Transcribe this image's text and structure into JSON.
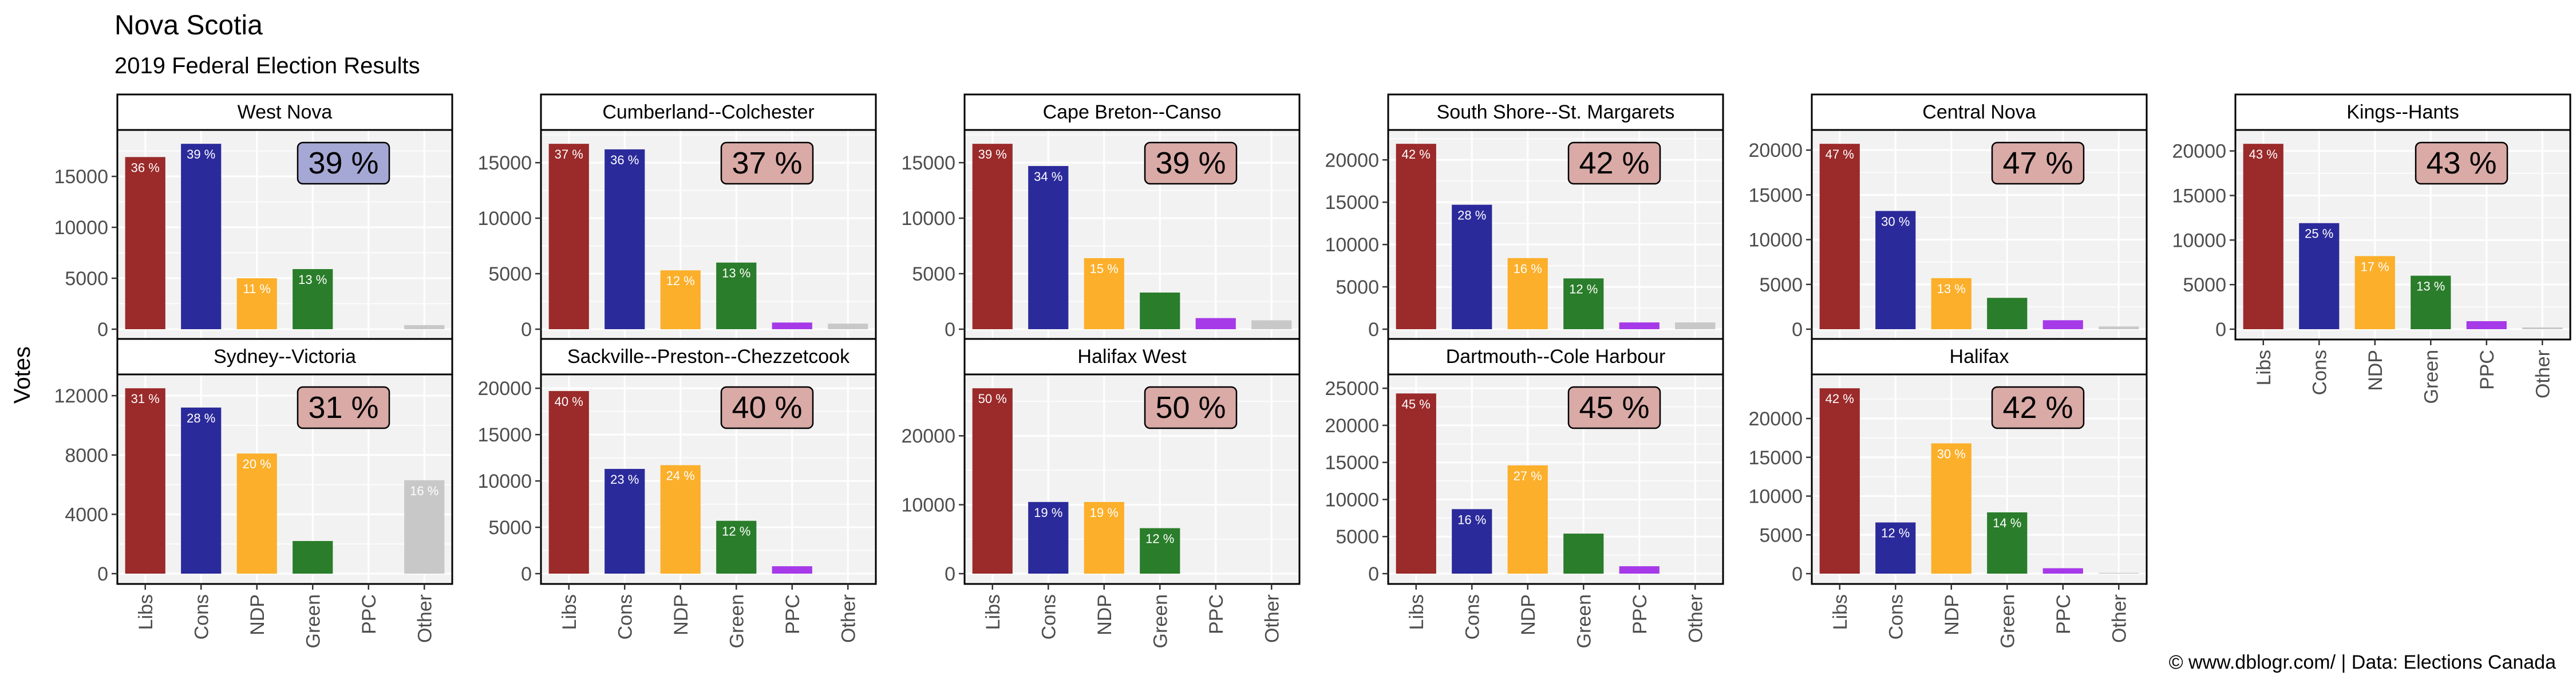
{
  "title": "Nova Scotia",
  "subtitle": "2019 Federal Election Results",
  "ylabel": "Votes",
  "caption": "© www.dblogr.com/  |  Data: Elections Canada",
  "colors": {
    "Libs": "#9b2a2a",
    "Cons": "#2b2a9b",
    "NDP": "#fbaf2a",
    "Green": "#2a7d2a",
    "PPC": "#a63ae8",
    "Other": "#c8c8c8",
    "panel_bg": "#f2f2f2",
    "grid": "#ffffff",
    "badge_default": "#d9aaa6",
    "badge_west_nova": "#a5a8d5"
  },
  "chart_data": {
    "type": "bar",
    "facet_layout": "wrap 6 columns x 2 rows",
    "categories": [
      "Libs",
      "Cons",
      "NDP",
      "Green",
      "PPC",
      "Other"
    ],
    "panels": [
      {
        "name": "West Nova",
        "winner_pct": "39 %",
        "winner": "Cons",
        "values": [
          16900,
          18200,
          5000,
          5900,
          0,
          400
        ],
        "labels": [
          "36 %",
          "39 %",
          "11 %",
          "13 %",
          "",
          ""
        ],
        "yticks": [
          0,
          5000,
          10000,
          15000
        ]
      },
      {
        "name": "Cumberland--Colchester",
        "winner_pct": "37 %",
        "winner": "Libs",
        "values": [
          16700,
          16200,
          5300,
          6000,
          600,
          500
        ],
        "labels": [
          "37 %",
          "36 %",
          "12 %",
          "13 %",
          "",
          ""
        ],
        "yticks": [
          0,
          5000,
          10000,
          15000
        ]
      },
      {
        "name": "Cape Breton--Canso",
        "winner_pct": "39 %",
        "winner": "Libs",
        "values": [
          16700,
          14700,
          6400,
          3300,
          1000,
          800
        ],
        "labels": [
          "39 %",
          "34 %",
          "15 %",
          "",
          "",
          ""
        ],
        "yticks": [
          0,
          5000,
          10000,
          15000
        ]
      },
      {
        "name": "South Shore--St. Margarets",
        "winner_pct": "42 %",
        "winner": "Libs",
        "values": [
          21900,
          14700,
          8400,
          6000,
          800,
          800
        ],
        "labels": [
          "42 %",
          "28 %",
          "16 %",
          "12 %",
          "",
          ""
        ],
        "yticks": [
          0,
          5000,
          10000,
          15000,
          20000
        ]
      },
      {
        "name": "Central Nova",
        "winner_pct": "47 %",
        "winner": "Libs",
        "values": [
          20700,
          13200,
          5700,
          3500,
          1000,
          300
        ],
        "labels": [
          "47 %",
          "30 %",
          "13 %",
          "",
          "",
          ""
        ],
        "yticks": [
          0,
          5000,
          10000,
          15000,
          20000
        ]
      },
      {
        "name": "Kings--Hants",
        "winner_pct": "43 %",
        "winner": "Libs",
        "values": [
          20800,
          11900,
          8200,
          6000,
          900,
          200
        ],
        "labels": [
          "43 %",
          "25 %",
          "17 %",
          "13 %",
          "",
          ""
        ],
        "yticks": [
          0,
          5000,
          10000,
          15000,
          20000
        ]
      },
      {
        "name": "Sydney--Victoria",
        "winner_pct": "31 %",
        "winner": "Libs",
        "values": [
          12500,
          11200,
          8100,
          2200,
          0,
          6300
        ],
        "labels": [
          "31 %",
          "28 %",
          "20 %",
          "",
          "",
          "16 %"
        ],
        "yticks": [
          0,
          4000,
          8000,
          12000
        ]
      },
      {
        "name": "Sackville--Preston--Chezzetcook",
        "winner_pct": "40 %",
        "winner": "Libs",
        "values": [
          19700,
          11300,
          11700,
          5700,
          800,
          0
        ],
        "labels": [
          "40 %",
          "23 %",
          "24 %",
          "12 %",
          "",
          ""
        ],
        "yticks": [
          0,
          5000,
          10000,
          15000,
          20000
        ]
      },
      {
        "name": "Halifax West",
        "winner_pct": "50 %",
        "winner": "Libs",
        "values": [
          26900,
          10400,
          10400,
          6600,
          0,
          0
        ],
        "labels": [
          "50 %",
          "19 %",
          "19 %",
          "12 %",
          "",
          ""
        ],
        "yticks": [
          0,
          10000,
          20000
        ]
      },
      {
        "name": "Dartmouth--Cole Harbour",
        "winner_pct": "45 %",
        "winner": "Libs",
        "values": [
          24300,
          8700,
          14600,
          5400,
          1000,
          0
        ],
        "labels": [
          "45 %",
          "16 %",
          "27 %",
          "",
          "",
          ""
        ],
        "yticks": [
          0,
          5000,
          10000,
          15000,
          20000,
          25000
        ]
      },
      {
        "name": "Halifax",
        "winner_pct": "42 %",
        "winner": "Libs",
        "values": [
          23900,
          6600,
          16800,
          7900,
          700,
          100
        ],
        "labels": [
          "42 %",
          "12 %",
          "30 %",
          "14 %",
          "",
          ""
        ],
        "yticks": [
          0,
          5000,
          10000,
          15000,
          20000
        ]
      }
    ]
  }
}
